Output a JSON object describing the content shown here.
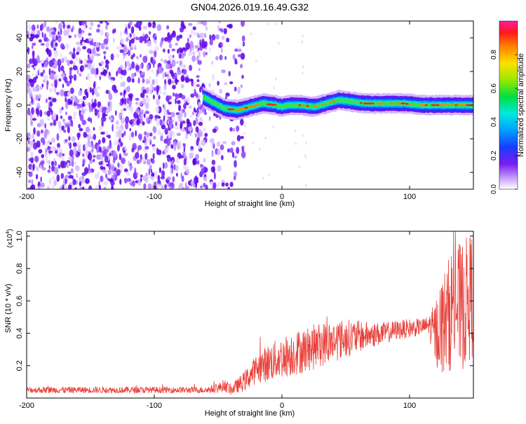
{
  "figure_title": "GN04.2026.019.16.49.G32",
  "colorbar": {
    "label": "Normalized spectral amplitude",
    "ticks": [
      "0.0",
      "0.2",
      "0.4",
      "0.6",
      "0.8"
    ],
    "tick_values": [
      0.0,
      0.2,
      0.4,
      0.6,
      0.8
    ],
    "range": [
      0,
      1
    ]
  },
  "chart_data": [
    {
      "type": "heatmap",
      "title": "",
      "xlabel": "Height of straight line (km)",
      "ylabel": "Frequency (Hz)",
      "xlim": [
        -200,
        150
      ],
      "ylim": [
        -50,
        50
      ],
      "xticks": [
        -200,
        -100,
        0,
        100
      ],
      "xtick_labels": [
        "-200",
        "-100",
        "0",
        "100"
      ],
      "yticks": [
        -40,
        -20,
        0,
        20,
        40
      ],
      "ytick_labels": [
        "-40",
        "-20",
        "0",
        "20",
        "40"
      ],
      "colormap": "rainbow (purple low, red high)",
      "noise_region_x": [
        -200,
        -40
      ],
      "signal_track": {
        "x": [
          -62,
          -55,
          -45,
          -35,
          -25,
          -15,
          -5,
          0,
          5,
          15,
          25,
          35,
          45,
          55,
          65,
          80,
          95,
          110,
          120,
          135,
          150
        ],
        "y": [
          5,
          2,
          -2,
          -3,
          -1,
          1,
          0,
          -1,
          0,
          0,
          -1,
          1,
          3,
          2,
          1,
          1,
          1,
          0,
          0,
          0,
          0
        ]
      }
    },
    {
      "type": "line",
      "title": "",
      "xlabel": "Height of straight line (km)",
      "ylabel": "SNR (10 * v/v)",
      "y_multiplier": "(x10",
      "y_multiplier_exp": "4",
      "xlim": [
        -200,
        150
      ],
      "ylim": [
        0,
        1.03
      ],
      "xticks": [
        -200,
        -100,
        0,
        100
      ],
      "xtick_labels": [
        "-200",
        "-100",
        "0",
        "100"
      ],
      "yticks": [
        0.2,
        0.4,
        0.6,
        0.8,
        1.0
      ],
      "ytick_labels": [
        "0.2",
        "0.4",
        "0.6",
        "0.8",
        "1.0"
      ],
      "series": [
        {
          "color": "#e8403a",
          "x": [
            -200,
            -180,
            -160,
            -140,
            -120,
            -100,
            -80,
            -60,
            -50,
            -45,
            -40,
            -30,
            -20,
            -10,
            0,
            10,
            20,
            30,
            40,
            50,
            60,
            70,
            80,
            90,
            100,
            110,
            115,
            120,
            125,
            130,
            135,
            140,
            145,
            150
          ],
          "values": [
            0.05,
            0.05,
            0.05,
            0.05,
            0.05,
            0.05,
            0.05,
            0.05,
            0.06,
            0.08,
            0.05,
            0.1,
            0.18,
            0.22,
            0.25,
            0.28,
            0.3,
            0.33,
            0.35,
            0.37,
            0.38,
            0.39,
            0.4,
            0.42,
            0.43,
            0.44,
            0.45,
            0.4,
            0.45,
            0.5,
            0.6,
            0.55,
            0.6,
            0.65
          ],
          "noise_amplitude": [
            0.02,
            0.02,
            0.02,
            0.02,
            0.02,
            0.02,
            0.02,
            0.02,
            0.03,
            0.04,
            0.03,
            0.06,
            0.09,
            0.12,
            0.13,
            0.14,
            0.14,
            0.14,
            0.13,
            0.12,
            0.1,
            0.08,
            0.07,
            0.06,
            0.06,
            0.05,
            0.06,
            0.2,
            0.3,
            0.35,
            0.4,
            0.4,
            0.4,
            0.4
          ]
        }
      ]
    }
  ]
}
